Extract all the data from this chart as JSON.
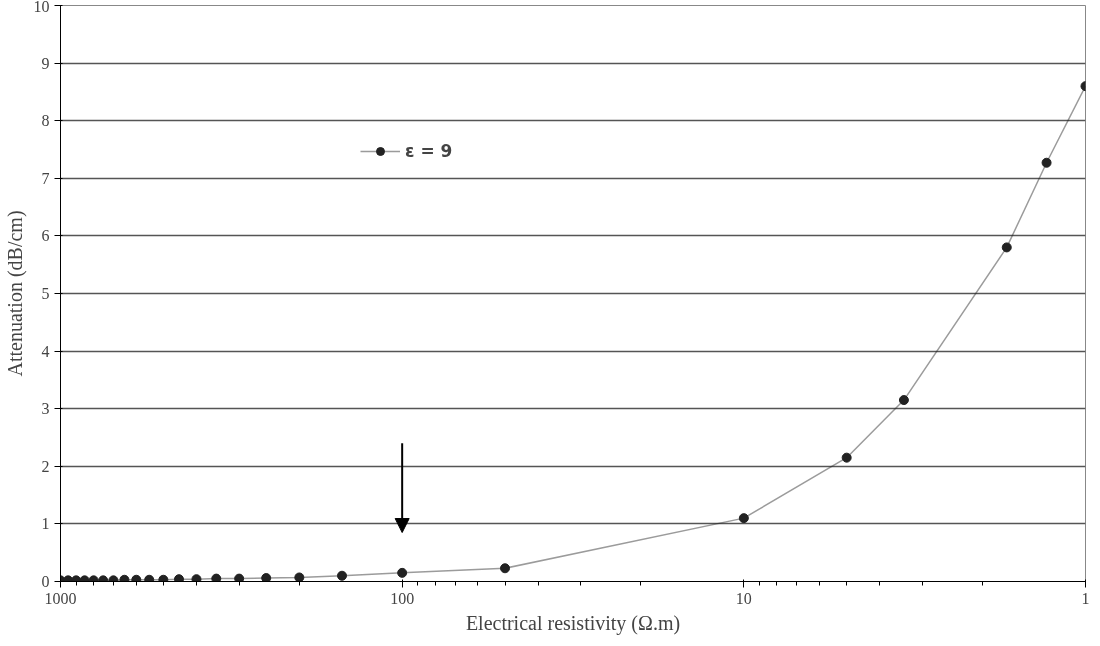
{
  "chart_data": {
    "type": "line",
    "xlabel": "Electrical resistivity (Ω.m)",
    "ylabel": "Attenuation (dB/cm)",
    "log": "x",
    "xlim": [
      1000,
      1
    ],
    "xticks": [
      1000,
      100,
      10,
      1
    ],
    "ylim": [
      0,
      10
    ],
    "yticks": [
      0,
      1,
      2,
      3,
      4,
      5,
      6,
      7,
      8,
      9,
      10
    ],
    "grid": "y",
    "legend": "top left",
    "marker": "circle",
    "line_style": "solid",
    "series": [
      {
        "name": "ε = 9",
        "color": "#222222",
        "x": [
          1000,
          950,
          900,
          850,
          800,
          750,
          700,
          650,
          600,
          550,
          500,
          450,
          400,
          350,
          300,
          250,
          200,
          150,
          100,
          50,
          10,
          5,
          3.4,
          1.7,
          1.3,
          1
        ],
        "values": [
          0.02,
          0.02,
          0.02,
          0.02,
          0.02,
          0.02,
          0.02,
          0.03,
          0.03,
          0.03,
          0.03,
          0.04,
          0.04,
          0.05,
          0.05,
          0.06,
          0.07,
          0.1,
          0.15,
          0.23,
          1.1,
          2.15,
          3.15,
          5.8,
          7.27,
          8.6
        ]
      }
    ]
  }
}
